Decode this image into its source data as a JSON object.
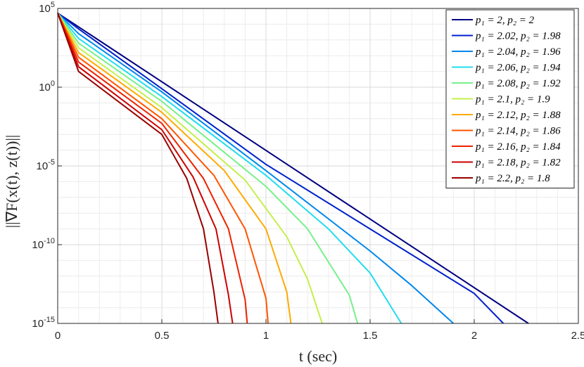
{
  "chart_data": {
    "type": "line",
    "title": "",
    "xlabel": "t (sec)",
    "ylabel": "||∇F(x(t), z(t))||",
    "xlim": [
      0,
      2.5
    ],
    "ylim_log10": [
      -15,
      5
    ],
    "yscale": "log",
    "x_ticks": [
      "0",
      "0.5",
      "1",
      "1.5",
      "2",
      "2.5"
    ],
    "y_ticks": [
      {
        "base": "10",
        "exp": "5",
        "log10": 5
      },
      {
        "base": "10",
        "exp": "0",
        "log10": 0
      },
      {
        "base": "10",
        "exp": "-5",
        "log10": -5
      },
      {
        "base": "10",
        "exp": "-10",
        "log10": -10
      },
      {
        "base": "10",
        "exp": "-15",
        "log10": -15
      }
    ],
    "grid": true,
    "minor_grid": true,
    "legend_position": "top-right",
    "start_log10_value": 4.7,
    "series": [
      {
        "name": "p₁ = 2, p₂ = 2",
        "color": "#000080",
        "values_log10": [
          [
            0,
            4.7
          ],
          [
            2.26,
            -15
          ]
        ]
      },
      {
        "name": "p₁ = 2.02, p₂ = 1.98",
        "color": "#0022cc",
        "values_log10": [
          [
            0,
            4.7
          ],
          [
            0.1,
            3.7
          ],
          [
            0.5,
            -0.1
          ],
          [
            1.0,
            -4.9
          ],
          [
            1.5,
            -9.0
          ],
          [
            2.0,
            -13.1
          ],
          [
            2.14,
            -15
          ]
        ]
      },
      {
        "name": "p₁ = 2.04, p₂ = 1.96",
        "color": "#0088ee",
        "values_log10": [
          [
            0,
            4.7
          ],
          [
            0.1,
            3.4
          ],
          [
            0.5,
            -0.3
          ],
          [
            1.0,
            -5.3
          ],
          [
            1.5,
            -10.4
          ],
          [
            1.7,
            -12.6
          ],
          [
            1.9,
            -15
          ]
        ]
      },
      {
        "name": "p₁ = 2.06, p₂ = 1.94",
        "color": "#22ddee",
        "values_log10": [
          [
            0,
            4.7
          ],
          [
            0.1,
            3.1
          ],
          [
            0.5,
            -0.6
          ],
          [
            1.0,
            -5.6
          ],
          [
            1.3,
            -9.0
          ],
          [
            1.5,
            -11.8
          ],
          [
            1.65,
            -15
          ]
        ]
      },
      {
        "name": "p₁ = 2.08, p₂ = 1.92",
        "color": "#77f08a",
        "values_log10": [
          [
            0,
            4.7
          ],
          [
            0.1,
            2.8
          ],
          [
            0.5,
            -0.9
          ],
          [
            1.0,
            -6.3
          ],
          [
            1.2,
            -9.0
          ],
          [
            1.4,
            -13.2
          ],
          [
            1.44,
            -15
          ]
        ]
      },
      {
        "name": "p₁ = 2.1, p₂ = 1.9",
        "color": "#c4f04c",
        "values_log10": [
          [
            0,
            4.7
          ],
          [
            0.1,
            2.5
          ],
          [
            0.5,
            -1.3
          ],
          [
            0.9,
            -5.9
          ],
          [
            1.1,
            -9.5
          ],
          [
            1.2,
            -12.2
          ],
          [
            1.27,
            -15
          ]
        ]
      },
      {
        "name": "p₁ = 2.12, p₂ = 1.88",
        "color": "#ffaa00",
        "values_log10": [
          [
            0,
            4.7
          ],
          [
            0.1,
            2.2
          ],
          [
            0.5,
            -1.6
          ],
          [
            0.8,
            -5.3
          ],
          [
            1.0,
            -9.0
          ],
          [
            1.1,
            -13.0
          ],
          [
            1.12,
            -15
          ]
        ]
      },
      {
        "name": "p₁ = 2.14, p₂ = 1.86",
        "color": "#ff5500",
        "values_log10": [
          [
            0,
            4.7
          ],
          [
            0.1,
            1.9
          ],
          [
            0.5,
            -2.0
          ],
          [
            0.75,
            -5.6
          ],
          [
            0.9,
            -9.0
          ],
          [
            1.0,
            -13.4
          ],
          [
            1.01,
            -15
          ]
        ]
      },
      {
        "name": "p₁ = 2.16, p₂ = 1.84",
        "color": "#ee2200",
        "values_log10": [
          [
            0,
            4.7
          ],
          [
            0.1,
            1.6
          ],
          [
            0.5,
            -2.3
          ],
          [
            0.7,
            -5.8
          ],
          [
            0.82,
            -9.0
          ],
          [
            0.9,
            -13.5
          ],
          [
            0.91,
            -15
          ]
        ]
      },
      {
        "name": "p₁ = 2.18, p₂ = 1.82",
        "color": "#cc0000",
        "values_log10": [
          [
            0,
            4.7
          ],
          [
            0.1,
            1.3
          ],
          [
            0.5,
            -2.7
          ],
          [
            0.65,
            -5.7
          ],
          [
            0.76,
            -9.0
          ],
          [
            0.82,
            -13.2
          ],
          [
            0.84,
            -15
          ]
        ]
      },
      {
        "name": "p₁ = 2.2, p₂ = 1.8",
        "color": "#990000",
        "values_log10": [
          [
            0,
            4.7
          ],
          [
            0.1,
            1.0
          ],
          [
            0.5,
            -3.0
          ],
          [
            0.62,
            -5.8
          ],
          [
            0.7,
            -9.0
          ],
          [
            0.75,
            -13.0
          ],
          [
            0.77,
            -15
          ]
        ]
      }
    ]
  }
}
